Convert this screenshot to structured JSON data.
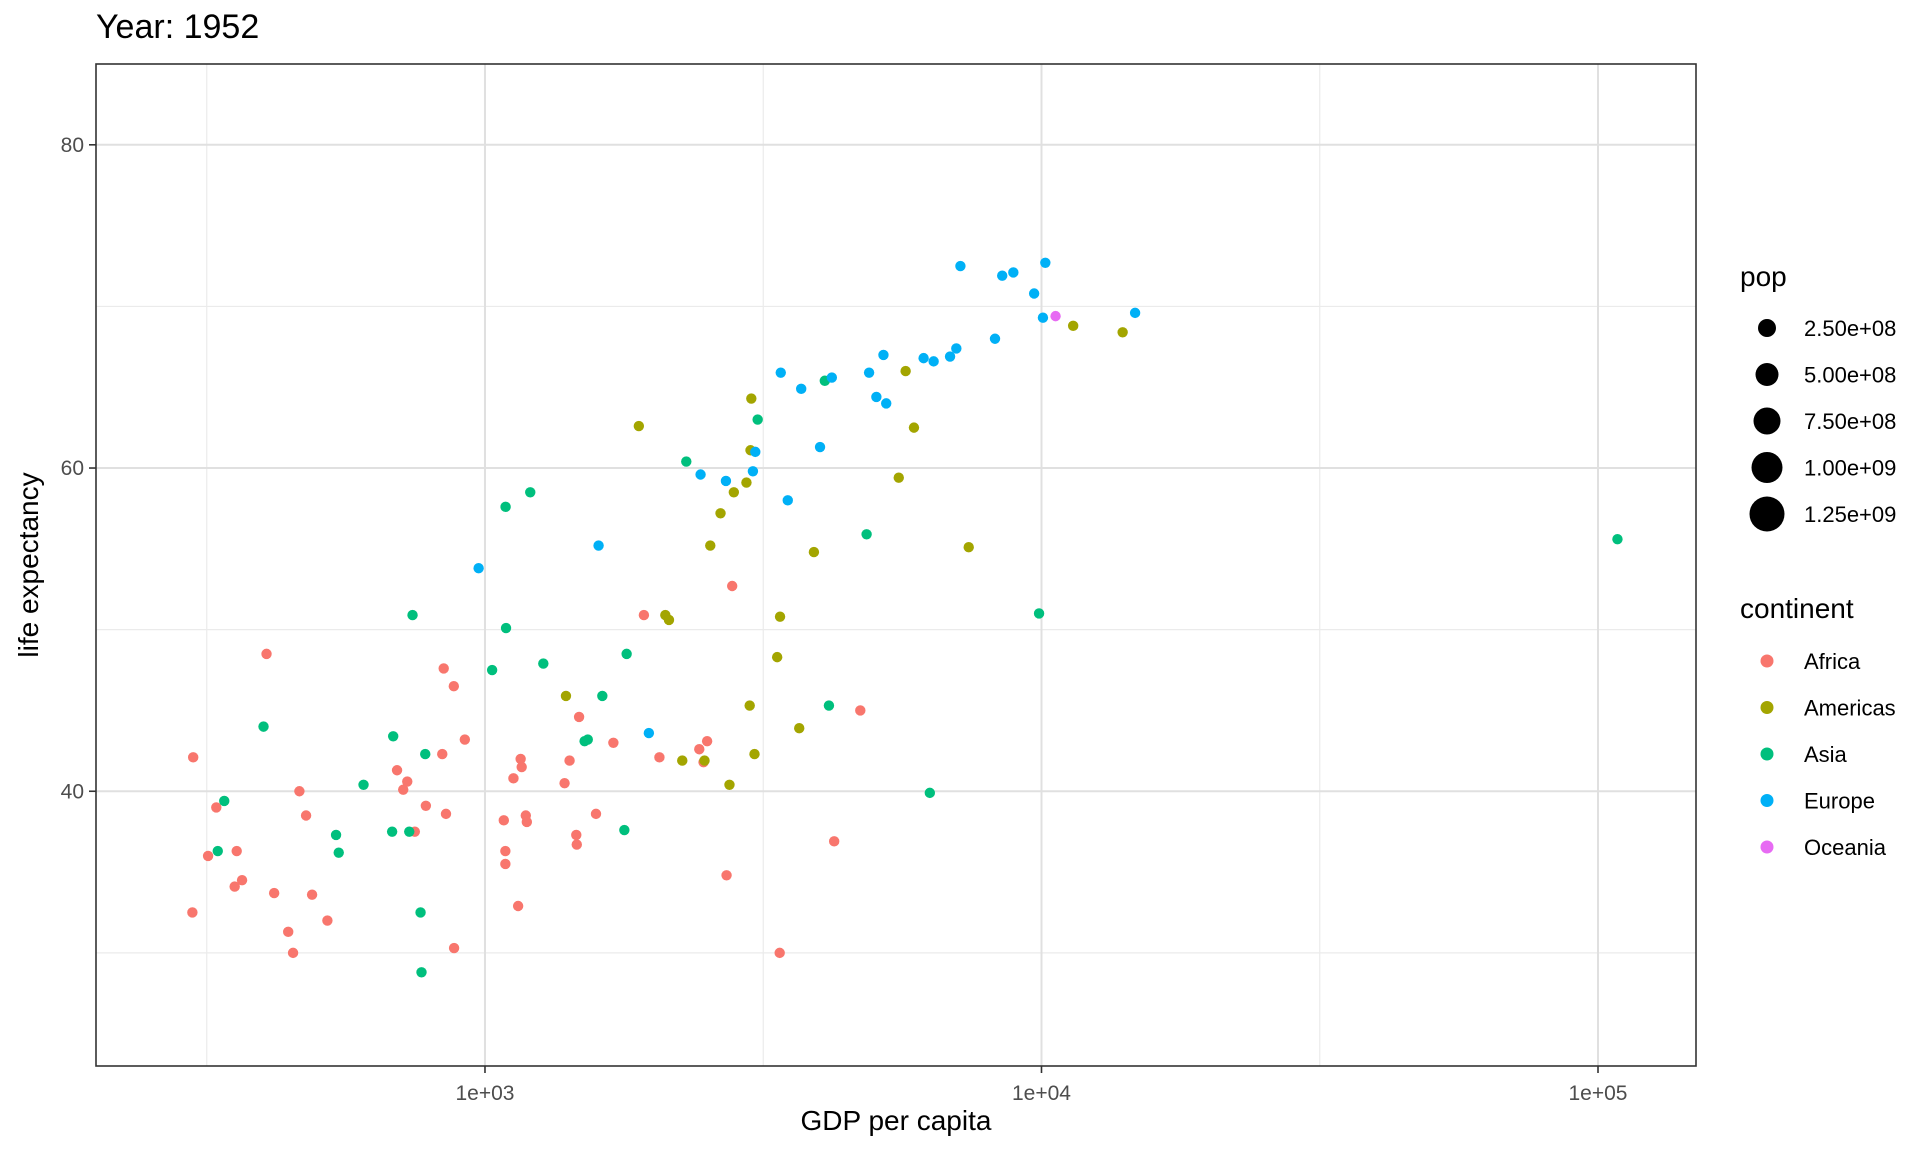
{
  "chart_data": {
    "type": "scatter",
    "title": "Year: 1952",
    "xlabel": "GDP per capita",
    "ylabel": "life expectancy",
    "x_scale": "log10",
    "xlim": [
      200,
      150000
    ],
    "ylim": [
      23,
      85
    ],
    "x_ticks": [
      {
        "value": 1000,
        "label": "1e+03"
      },
      {
        "value": 10000,
        "label": "1e+04"
      },
      {
        "value": 100000,
        "label": "1e+05"
      }
    ],
    "y_ticks": [
      {
        "value": 40,
        "label": "40"
      },
      {
        "value": 60,
        "label": "60"
      },
      {
        "value": 80,
        "label": "80"
      }
    ],
    "grid": true,
    "legend_position": "right",
    "size_legend": {
      "title": "pop",
      "entries": [
        {
          "value": 250000000,
          "label": "2.50e+08"
        },
        {
          "value": 500000000,
          "label": "5.00e+08"
        },
        {
          "value": 750000000,
          "label": "7.50e+08"
        },
        {
          "value": 1000000000,
          "label": "1.00e+09"
        },
        {
          "value": 1250000000,
          "label": "1.25e+09"
        }
      ]
    },
    "color_legend": {
      "title": "continent",
      "entries": [
        {
          "name": "Africa",
          "color": "#F8766D"
        },
        {
          "name": "Americas",
          "color": "#A3A500"
        },
        {
          "name": "Asia",
          "color": "#00BF7D"
        },
        {
          "name": "Europe",
          "color": "#00B0F6"
        },
        {
          "name": "Oceania",
          "color": "#E76BF3"
        }
      ]
    },
    "series": [
      {
        "name": "Africa",
        "color": "#F8766D",
        "points": [
          [
            299,
            42.1
          ],
          [
            329,
            39.0
          ],
          [
            355,
            34.1
          ],
          [
            358,
            36.3
          ],
          [
            366,
            34.5
          ],
          [
            298,
            32.5
          ],
          [
            318,
            36.0
          ],
          [
            405,
            48.5
          ],
          [
            418,
            33.7
          ],
          [
            443,
            31.3
          ],
          [
            452,
            30.0
          ],
          [
            464,
            40.0
          ],
          [
            477,
            38.5
          ],
          [
            489,
            33.6
          ],
          [
            521,
            32.0
          ],
          [
            695,
            41.3
          ],
          [
            713,
            40.1
          ],
          [
            725,
            40.6
          ],
          [
            748,
            37.5
          ],
          [
            783,
            39.1
          ],
          [
            838,
            42.3
          ],
          [
            843,
            47.6
          ],
          [
            851,
            38.6
          ],
          [
            879,
            46.5
          ],
          [
            880,
            30.3
          ],
          [
            920,
            43.2
          ],
          [
            1081,
            38.2
          ],
          [
            1088,
            36.3
          ],
          [
            1088,
            35.5
          ],
          [
            1125,
            40.8
          ],
          [
            1147,
            32.9
          ],
          [
            1159,
            42.0
          ],
          [
            1164,
            41.5
          ],
          [
            1184,
            38.5
          ],
          [
            1189,
            38.1
          ],
          [
            1390,
            40.5
          ],
          [
            1419,
            41.9
          ],
          [
            1459,
            37.3
          ],
          [
            1462,
            36.7
          ],
          [
            1476,
            44.6
          ],
          [
            1583,
            38.6
          ],
          [
            1701,
            43.0
          ],
          [
            1930,
            50.9
          ],
          [
            2058,
            42.1
          ],
          [
            2427,
            42.6
          ],
          [
            2470,
            41.8
          ],
          [
            2507,
            43.1
          ],
          [
            2717,
            34.8
          ],
          [
            2781,
            52.7
          ],
          [
            3385,
            30.0
          ],
          [
            4241,
            36.9
          ],
          [
            4725,
            45.0
          ]
        ]
      },
      {
        "name": "Americas",
        "color": "#A3A500",
        "points": [
          [
            1398,
            45.9
          ],
          [
            1890,
            62.6
          ],
          [
            2109,
            50.9
          ],
          [
            2141,
            50.6
          ],
          [
            2262,
            41.9
          ],
          [
            2480,
            41.9
          ],
          [
            2540,
            55.2
          ],
          [
            2800,
            58.5
          ],
          [
            2650,
            57.2
          ],
          [
            2750,
            40.4
          ],
          [
            2950,
            59.1
          ],
          [
            2990,
            45.3
          ],
          [
            3010,
            64.3
          ],
          [
            3050,
            42.3
          ],
          [
            3000,
            61.1
          ],
          [
            3350,
            48.3
          ],
          [
            3390,
            50.8
          ],
          [
            3670,
            43.9
          ],
          [
            3900,
            54.8
          ],
          [
            5700,
            66.0
          ],
          [
            5540,
            59.4
          ],
          [
            5900,
            62.5
          ],
          [
            7400,
            55.1
          ],
          [
            11400,
            68.8
          ],
          [
            13990,
            68.4
          ]
        ]
      },
      {
        "name": "Asia",
        "color": "#00BF7D",
        "points": [
          [
            331,
            36.3
          ],
          [
            340,
            39.4
          ],
          [
            400,
            44.0
          ],
          [
            540,
            37.3
          ],
          [
            546,
            36.2
          ],
          [
            605,
            40.4
          ],
          [
            681,
            37.5
          ],
          [
            684,
            43.4
          ],
          [
            731,
            37.5
          ],
          [
            741,
            50.9
          ],
          [
            766,
            32.5
          ],
          [
            769,
            28.8
          ],
          [
            781,
            42.3
          ],
          [
            1030,
            47.5
          ],
          [
            1089,
            57.6
          ],
          [
            1091,
            50.1
          ],
          [
            1206,
            58.5
          ],
          [
            1273,
            47.9
          ],
          [
            1510,
            43.1
          ],
          [
            1530,
            43.2
          ],
          [
            1625,
            45.9
          ],
          [
            1780,
            37.6
          ],
          [
            1797,
            48.5
          ],
          [
            2300,
            60.4
          ],
          [
            3090,
            63.0
          ],
          [
            4080,
            65.4
          ],
          [
            4150,
            45.3
          ],
          [
            4850,
            55.9
          ],
          [
            6300,
            39.9
          ],
          [
            9900,
            51.0
          ],
          [
            108382,
            55.6
          ]
        ]
      },
      {
        "name": "Europe",
        "color": "#00B0F6",
        "points": [
          [
            974,
            53.8
          ],
          [
            1600,
            55.2
          ],
          [
            1970,
            43.6
          ],
          [
            2440,
            59.6
          ],
          [
            2710,
            59.2
          ],
          [
            3030,
            59.8
          ],
          [
            3060,
            61.0
          ],
          [
            3400,
            65.9
          ],
          [
            3500,
            58.0
          ],
          [
            3700,
            64.9
          ],
          [
            4000,
            61.3
          ],
          [
            4200,
            65.6
          ],
          [
            4900,
            65.9
          ],
          [
            5050,
            64.4
          ],
          [
            5200,
            67.0
          ],
          [
            5260,
            64.0
          ],
          [
            6140,
            66.8
          ],
          [
            6400,
            66.6
          ],
          [
            6850,
            66.9
          ],
          [
            7030,
            67.4
          ],
          [
            7150,
            72.5
          ],
          [
            8250,
            68.0
          ],
          [
            8500,
            71.9
          ],
          [
            8900,
            72.1
          ],
          [
            9700,
            70.8
          ],
          [
            10060,
            69.3
          ],
          [
            10160,
            72.7
          ],
          [
            14730,
            69.6
          ]
        ]
      },
      {
        "name": "Oceania",
        "color": "#E76BF3",
        "points": [
          [
            10600,
            69.4
          ]
        ]
      }
    ]
  }
}
